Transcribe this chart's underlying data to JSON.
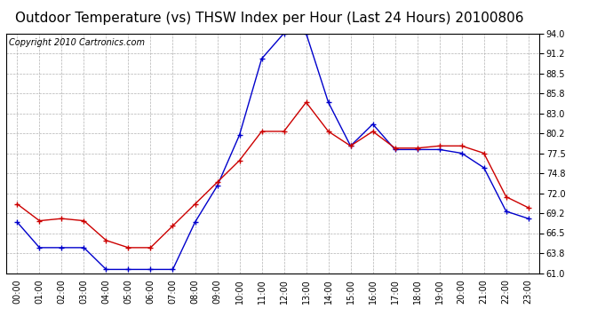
{
  "title": "Outdoor Temperature (vs) THSW Index per Hour (Last 24 Hours) 20100806",
  "copyright": "Copyright 2010 Cartronics.com",
  "hours": [
    0,
    1,
    2,
    3,
    4,
    5,
    6,
    7,
    8,
    9,
    10,
    11,
    12,
    13,
    14,
    15,
    16,
    17,
    18,
    19,
    20,
    21,
    22,
    23
  ],
  "hour_labels": [
    "00:00",
    "01:00",
    "02:00",
    "03:00",
    "04:00",
    "05:00",
    "06:00",
    "07:00",
    "08:00",
    "09:00",
    "10:00",
    "11:00",
    "12:00",
    "13:00",
    "14:00",
    "15:00",
    "16:00",
    "17:00",
    "18:00",
    "19:00",
    "20:00",
    "21:00",
    "22:00",
    "23:00"
  ],
  "temp": [
    70.5,
    68.2,
    68.5,
    68.2,
    65.5,
    64.5,
    64.5,
    67.5,
    70.5,
    73.5,
    76.5,
    80.5,
    80.5,
    84.5,
    80.5,
    78.5,
    80.5,
    78.2,
    78.2,
    78.5,
    78.5,
    77.5,
    71.5,
    70.0
  ],
  "thsw": [
    68.0,
    64.5,
    64.5,
    64.5,
    61.5,
    61.5,
    61.5,
    61.5,
    68.0,
    73.0,
    80.0,
    90.5,
    94.0,
    94.0,
    84.5,
    78.5,
    81.5,
    78.0,
    78.0,
    78.0,
    77.5,
    75.5,
    69.5,
    68.5
  ],
  "temp_color": "#cc0000",
  "thsw_color": "#0000cc",
  "ylim": [
    61.0,
    94.0
  ],
  "yticks": [
    61.0,
    63.8,
    66.5,
    69.2,
    72.0,
    74.8,
    77.5,
    80.2,
    83.0,
    85.8,
    88.5,
    91.2,
    94.0
  ],
  "bg_color": "#ffffff",
  "grid_color": "#aaaaaa",
  "title_fontsize": 11,
  "copyright_fontsize": 7
}
